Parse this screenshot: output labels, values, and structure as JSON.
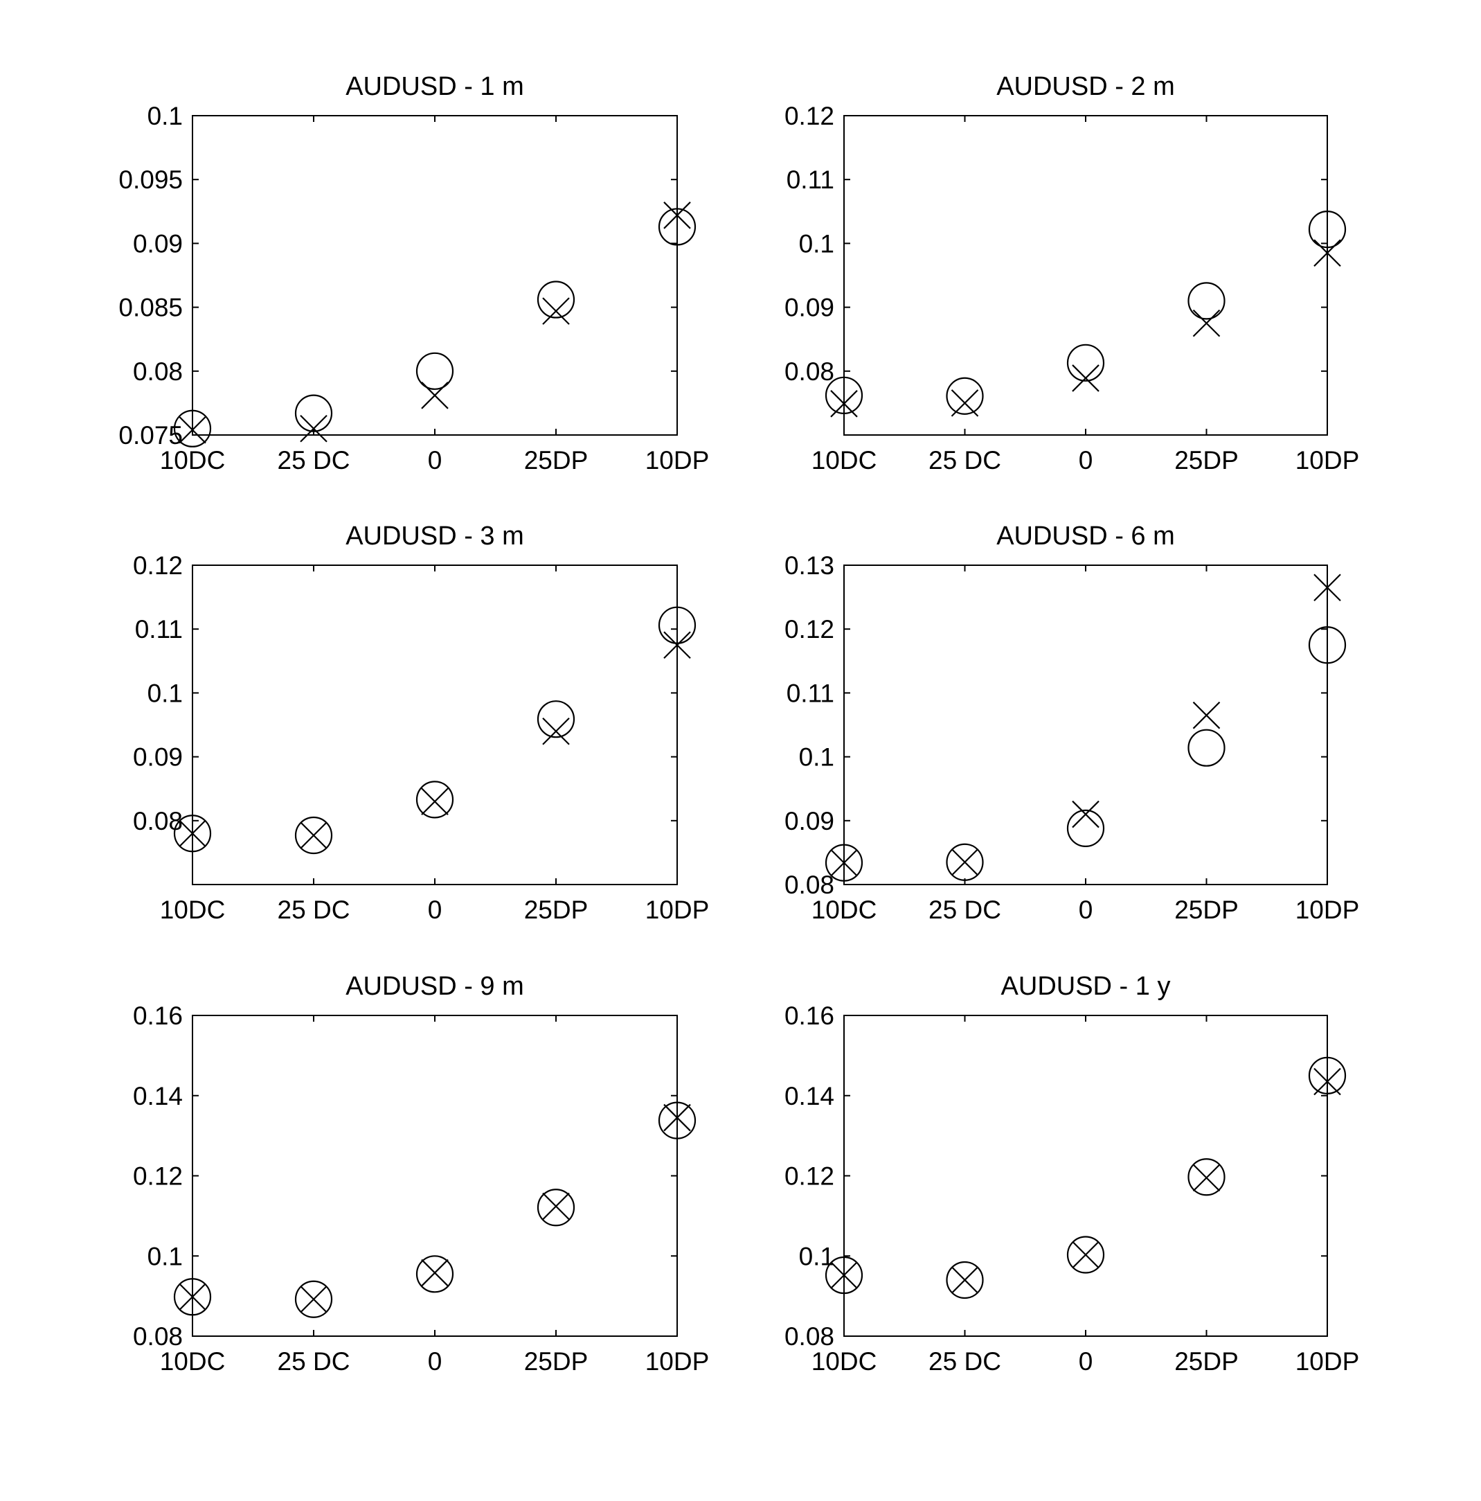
{
  "chart_data": [
    {
      "type": "scatter",
      "title": "AUDUSD - 1 m",
      "categories": [
        "10DC",
        "25 DC",
        "0",
        "25DP",
        "10DP"
      ],
      "yticks": [
        "0.075",
        "0.08",
        "0.085",
        "0.09",
        "0.095",
        "0.1"
      ],
      "ylim": [
        0.075,
        0.1
      ],
      "grid": false,
      "series": [
        {
          "marker": "circle",
          "values": [
            0.0755,
            0.0767,
            0.08,
            0.0856,
            0.0913
          ]
        },
        {
          "marker": "cross",
          "values": [
            0.0754,
            0.0755,
            0.0781,
            0.0847,
            0.0922
          ]
        }
      ]
    },
    {
      "type": "scatter",
      "title": "AUDUSD - 2 m",
      "categories": [
        "10DC",
        "25 DC",
        "0",
        "25DP",
        "10DP"
      ],
      "yticks": [
        "0.08",
        "0.09",
        "0.1",
        "0.11",
        "0.12"
      ],
      "ylim": [
        0.07,
        0.12
      ],
      "grid": false,
      "series": [
        {
          "marker": "circle",
          "values": [
            0.0762,
            0.0761,
            0.0813,
            0.091,
            0.1022
          ]
        },
        {
          "marker": "cross",
          "values": [
            0.0749,
            0.075,
            0.0789,
            0.0875,
            0.0985
          ]
        }
      ]
    },
    {
      "type": "scatter",
      "title": "AUDUSD - 3 m",
      "categories": [
        "10DC",
        "25 DC",
        "0",
        "25DP",
        "10DP"
      ],
      "yticks": [
        "0.08",
        "0.09",
        "0.1",
        "0.11",
        "0.12"
      ],
      "ylim": [
        0.07,
        0.12
      ],
      "grid": false,
      "series": [
        {
          "marker": "circle",
          "values": [
            0.078,
            0.0777,
            0.0833,
            0.0959,
            0.1106
          ]
        },
        {
          "marker": "cross",
          "values": [
            0.078,
            0.0777,
            0.083,
            0.094,
            0.1075
          ]
        }
      ]
    },
    {
      "type": "scatter",
      "title": "AUDUSD - 6 m",
      "categories": [
        "10DC",
        "25 DC",
        "0",
        "25DP",
        "10DP"
      ],
      "yticks": [
        "0.08",
        "0.09",
        "0.1",
        "0.11",
        "0.12",
        "0.13"
      ],
      "ylim": [
        0.08,
        0.13
      ],
      "grid": false,
      "series": [
        {
          "marker": "circle",
          "values": [
            0.0834,
            0.0835,
            0.0888,
            0.1014,
            0.1175
          ]
        },
        {
          "marker": "cross",
          "values": [
            0.0834,
            0.0835,
            0.091,
            0.1065,
            0.1265
          ]
        }
      ]
    },
    {
      "type": "scatter",
      "title": "AUDUSD - 9 m",
      "categories": [
        "10DC",
        "25 DC",
        "0",
        "25DP",
        "10DP"
      ],
      "yticks": [
        "0.08",
        "0.1",
        "0.12",
        "0.14",
        "0.16"
      ],
      "ylim": [
        0.08,
        0.16
      ],
      "grid": false,
      "series": [
        {
          "marker": "circle",
          "values": [
            0.0898,
            0.0892,
            0.0955,
            0.1121,
            0.1338
          ]
        },
        {
          "marker": "cross",
          "values": [
            0.0898,
            0.0892,
            0.0958,
            0.1124,
            0.1345
          ]
        }
      ]
    },
    {
      "type": "scatter",
      "title": "AUDUSD - 1 y",
      "categories": [
        "10DC",
        "25 DC",
        "0",
        "25DP",
        "10DP"
      ],
      "yticks": [
        "0.08",
        "0.1",
        "0.12",
        "0.14",
        "0.16"
      ],
      "ylim": [
        0.08,
        0.16
      ],
      "grid": false,
      "series": [
        {
          "marker": "circle",
          "values": [
            0.0952,
            0.094,
            0.1003,
            0.1197,
            0.145
          ]
        },
        {
          "marker": "cross",
          "values": [
            0.0952,
            0.094,
            0.1003,
            0.1195,
            0.1435
          ]
        }
      ]
    }
  ]
}
